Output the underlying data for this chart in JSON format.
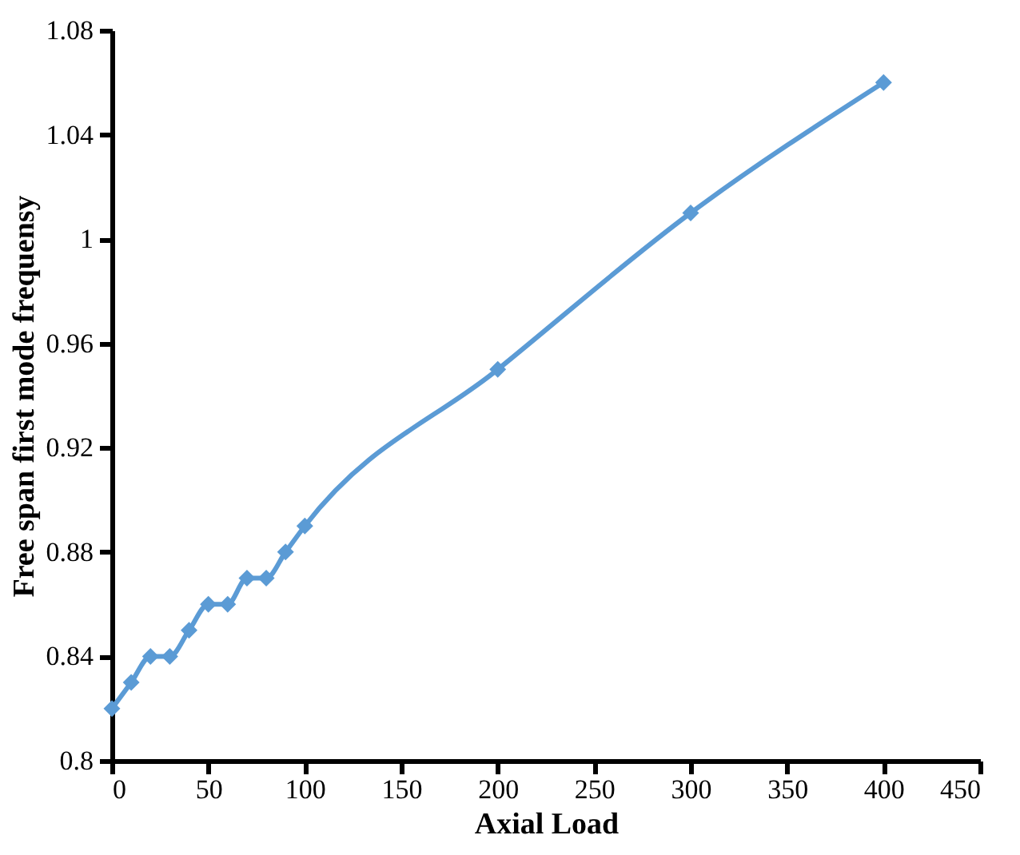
{
  "chart_data": {
    "type": "line",
    "xlabel": "Axial Load",
    "ylabel": "Free span first mode frequensy",
    "x": [
      0,
      10,
      20,
      30,
      40,
      50,
      60,
      70,
      80,
      90,
      100,
      200,
      300,
      400
    ],
    "series": [
      {
        "color": "#5b9bd5",
        "values": [
          0.82,
          0.83,
          0.84,
          0.84,
          0.85,
          0.86,
          0.86,
          0.87,
          0.87,
          0.88,
          0.89,
          0.95,
          1.01,
          1.06
        ]
      }
    ],
    "xlim": [
      0,
      450
    ],
    "xticks": [
      0,
      50,
      100,
      150,
      200,
      250,
      300,
      350,
      400,
      450
    ],
    "ylim": [
      0.8,
      1.08
    ],
    "yticks": [
      0.8,
      0.84,
      0.88,
      0.92,
      0.96,
      1,
      1.04,
      1.08
    ],
    "grid": false,
    "marker": "diamond",
    "line_style": "solid"
  }
}
